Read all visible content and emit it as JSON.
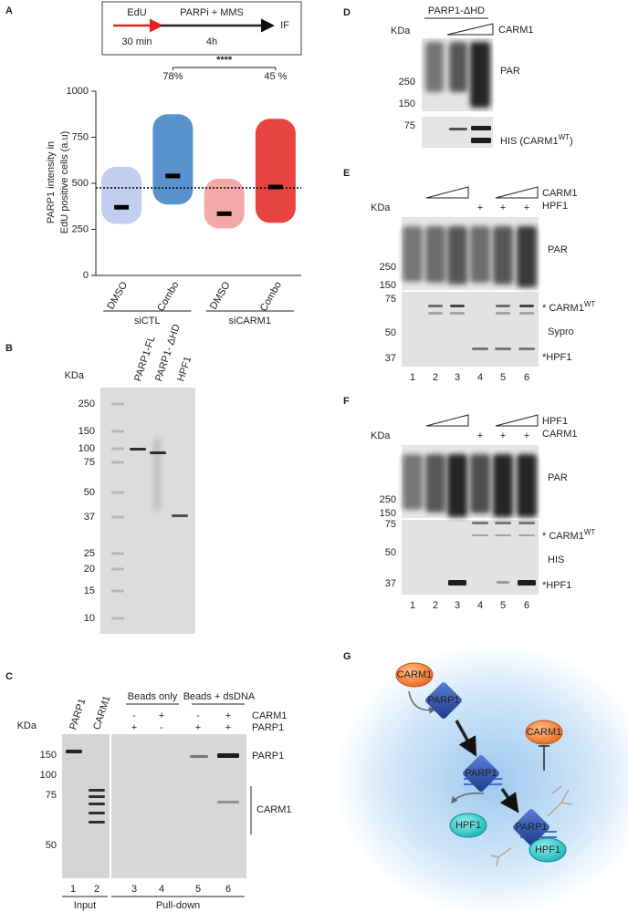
{
  "panel_a": {
    "label": "A",
    "scheme": {
      "edu": "EdU",
      "edu_time": "30 min",
      "treatment": "PARPi + MMS",
      "treatment_time": "4h",
      "readout": "IF"
    }
  },
  "chart_data": {
    "type": "strip",
    "y_label_lines": [
      "PARP1 intensity in",
      "EdU positive  cells (a.u)"
    ],
    "categories": [
      "DMSO",
      "Combo",
      "DMSO",
      "Combo"
    ],
    "groups": [
      "siCTL",
      "siCARM1"
    ],
    "values": [
      370,
      540,
      335,
      480
    ],
    "min": [
      280,
      385,
      255,
      285
    ],
    "max": [
      590,
      875,
      525,
      850
    ],
    "colors": [
      "#b7c6ec",
      "#3d7fc4",
      "#f29a9a",
      "#e3231f"
    ],
    "ylim": [
      0,
      1000
    ],
    "yticks": [
      0,
      250,
      500,
      750,
      1000
    ],
    "reference_line": 475,
    "annotations": [
      "78%",
      "45 %"
    ],
    "significance": "****"
  },
  "panel_b": {
    "label": "B",
    "unit": "KDa",
    "ladder": [
      250,
      150,
      100,
      75,
      50,
      37,
      25,
      20,
      15,
      10
    ],
    "lanes": [
      "PARP1-FL",
      "PARP1-  ΔHD",
      "HPF1"
    ]
  },
  "panel_c": {
    "label": "C",
    "unit": "KDa",
    "input_lanes": [
      "PARP1",
      "CARM1"
    ],
    "pulldown_groups": [
      "Beads only",
      "Beads + dsDNA"
    ],
    "rows": [
      {
        "name": "CARM1",
        "signs": [
          "-",
          "+",
          "-",
          "+"
        ]
      },
      {
        "name": "PARP1",
        "signs": [
          "+",
          "-",
          "+",
          "+"
        ]
      }
    ],
    "ladder": [
      150,
      100,
      75,
      50
    ],
    "band_labels": [
      "PARP1",
      "CARM1"
    ],
    "lane_numbers": [
      1,
      2,
      3,
      4,
      5,
      6
    ],
    "sections": [
      "Input",
      "Pull-down"
    ]
  },
  "panel_d": {
    "label": "D",
    "construct": "PARP1-ΔHD",
    "unit": "KDa",
    "titrant": "CARM1",
    "ladder": [
      250,
      150,
      75
    ],
    "blot_labels": [
      {
        "text": "PAR"
      },
      {
        "text": "HIS (CARM1",
        "sup": "WT",
        "tail": ")"
      }
    ]
  },
  "panel_e": {
    "label": "E",
    "unit": "KDa",
    "titrant": "CARM1",
    "addition": "HPF1",
    "plus_marks": [
      "+",
      "+",
      "+"
    ],
    "ladder": [
      250,
      150,
      75,
      50,
      37
    ],
    "blot_labels": [
      {
        "text": "PAR"
      },
      {
        "text": "* CARM1",
        "sup": "WT"
      },
      {
        "text": "Sypro"
      },
      {
        "text": "*HPF1"
      }
    ],
    "lane_numbers": [
      1,
      2,
      3,
      4,
      5,
      6
    ]
  },
  "panel_f": {
    "label": "F",
    "unit": "KDa",
    "titrant": "HPF1",
    "addition": "CARM1",
    "plus_marks": [
      "+",
      "+",
      "+"
    ],
    "ladder": [
      250,
      150,
      75,
      50,
      37
    ],
    "blot_labels": [
      {
        "text": "PAR"
      },
      {
        "text": "* CARM1",
        "sup": "WT"
      },
      {
        "text": "HIS"
      },
      {
        "text": "*HPF1"
      }
    ],
    "lane_numbers": [
      1,
      2,
      3,
      4,
      5,
      6
    ]
  },
  "panel_g": {
    "label": "G",
    "nodes": [
      {
        "label": "CARM1"
      },
      {
        "label": "PARP1"
      },
      {
        "label": "PARP1"
      },
      {
        "label": "CARM1"
      },
      {
        "label": "HPF1"
      },
      {
        "label": "PARP1"
      },
      {
        "label": "HPF1"
      }
    ]
  }
}
